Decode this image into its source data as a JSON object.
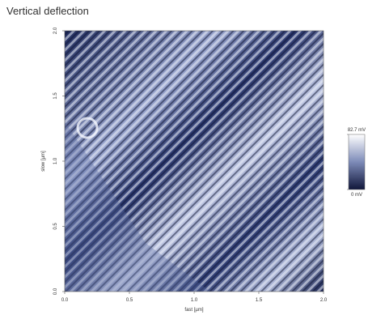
{
  "chart_data": {
    "type": "image",
    "title": "Vertical deflection",
    "x_label": "fast [µm]",
    "y_label": "slow [µm]",
    "xlim": [
      0,
      2
    ],
    "ylim": [
      0,
      2
    ],
    "xticks": [
      {
        "value": 0,
        "label": "0.0"
      },
      {
        "value": 0.5,
        "label": "0.5"
      },
      {
        "value": 1,
        "label": "1.0"
      },
      {
        "value": 1.5,
        "label": "1.5"
      },
      {
        "value": 2,
        "label": "2.0"
      }
    ],
    "yticks": [
      {
        "value": 0,
        "label": "0.0"
      },
      {
        "value": 0.5,
        "label": "0.5"
      },
      {
        "value": 1,
        "label": "1.0"
      },
      {
        "value": 1.5,
        "label": "1.5"
      },
      {
        "value": 2,
        "label": "2.0"
      }
    ],
    "clim": [
      0,
      82.7
    ],
    "cticks": [
      {
        "value": 0,
        "label": "0 mV"
      },
      {
        "value": 82.7,
        "label": "82.7 mV"
      }
    ]
  }
}
